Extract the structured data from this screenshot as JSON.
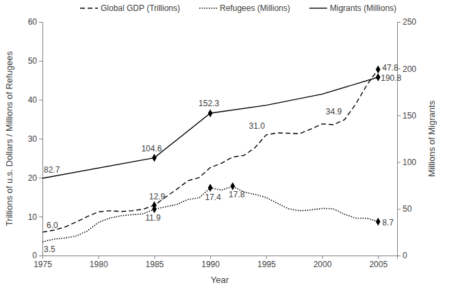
{
  "chart_data": {
    "type": "line",
    "x_label": "Year",
    "y_label": "Trillions of u.s. Dollars / Millions of Refugees",
    "y2_label": "Millions of Migrants",
    "xlim": [
      1975,
      2006.7
    ],
    "xticks": [
      1975,
      1980,
      1985,
      1990,
      1995,
      2000,
      2005
    ],
    "ylim": [
      0,
      60
    ],
    "yticks": [
      0,
      10,
      20,
      30,
      40,
      50,
      60
    ],
    "y2lim": [
      0,
      250
    ],
    "y2ticks": [
      0,
      50,
      100,
      150,
      200,
      250
    ],
    "grid": false,
    "legend": "top",
    "series": [
      {
        "name": "Global GDP (Trillions)",
        "color": "#000000",
        "line_style": "dashed",
        "axis": "y",
        "x": [
          1975,
          1976,
          1977,
          1978,
          1979,
          1980,
          1981,
          1982,
          1983,
          1984,
          1985,
          1986,
          1987,
          1988,
          1989,
          1990,
          1991,
          1992,
          1993,
          1994,
          1995,
          1996,
          1997,
          1998,
          1999,
          2000,
          2001,
          2002,
          2003,
          2004,
          2005
        ],
        "values": [
          6.0,
          6.5,
          7.3,
          8.6,
          10.0,
          11.2,
          11.5,
          11.3,
          11.5,
          11.9,
          12.9,
          15.0,
          17.0,
          19.2,
          20.0,
          22.6,
          23.7,
          25.3,
          25.7,
          27.7,
          31.0,
          31.5,
          31.4,
          31.3,
          32.5,
          33.8,
          33.6,
          34.9,
          38.9,
          43.8,
          47.8
        ]
      },
      {
        "name": "Refugees (Millions)",
        "color": "#000000",
        "line_style": "dotted",
        "axis": "y",
        "x": [
          1975,
          1976,
          1977,
          1978,
          1979,
          1980,
          1981,
          1982,
          1983,
          1984,
          1985,
          1986,
          1987,
          1988,
          1989,
          1990,
          1991,
          1992,
          1993,
          1994,
          1995,
          1996,
          1997,
          1998,
          1999,
          2000,
          2001,
          2002,
          2003,
          2004,
          2005
        ],
        "values": [
          3.5,
          4.2,
          4.5,
          5.0,
          6.3,
          8.5,
          9.6,
          10.2,
          10.5,
          10.7,
          11.9,
          12.5,
          13.1,
          14.4,
          14.8,
          17.4,
          16.8,
          17.8,
          16.3,
          15.7,
          14.9,
          13.4,
          12.0,
          11.5,
          11.7,
          12.1,
          12.0,
          10.6,
          9.6,
          9.6,
          8.7
        ]
      },
      {
        "name": "Migrants (Millions)",
        "color": "#000000",
        "line_style": "solid",
        "axis": "y2",
        "x": [
          1975,
          1985,
          1990,
          1995,
          2000,
          2005
        ],
        "values": [
          82.7,
          104.6,
          152.3,
          160.8,
          172.7,
          190.8
        ]
      }
    ],
    "annotations": [
      {
        "text": "82.7",
        "x": 1975,
        "y": 82.7,
        "axis": "y2"
      },
      {
        "text": "104.6",
        "x": 1985,
        "y": 104.6,
        "axis": "y2",
        "marker": "diamond"
      },
      {
        "text": "152.3",
        "x": 1990,
        "y": 152.3,
        "axis": "y2",
        "marker": "diamond"
      },
      {
        "text": "190.8",
        "x": 2005,
        "y": 190.8,
        "axis": "y2",
        "marker": "diamond"
      },
      {
        "text": "6.0",
        "x": 1975,
        "y": 6.0,
        "axis": "y"
      },
      {
        "text": "12.9",
        "x": 1985,
        "y": 12.9,
        "axis": "y",
        "marker": "diamond"
      },
      {
        "text": "31.0",
        "x": 1995,
        "y": 31.0,
        "axis": "y"
      },
      {
        "text": "34.9",
        "x": 2002,
        "y": 34.9,
        "axis": "y"
      },
      {
        "text": "47.8",
        "x": 2005,
        "y": 47.8,
        "axis": "y",
        "marker": "diamond"
      },
      {
        "text": "3.5",
        "x": 1975,
        "y": 3.5,
        "axis": "y"
      },
      {
        "text": "11.9",
        "x": 1985,
        "y": 11.9,
        "axis": "y",
        "marker": "diamond"
      },
      {
        "text": "17.4",
        "x": 1990,
        "y": 17.4,
        "axis": "y",
        "marker": "diamond"
      },
      {
        "text": "17.8",
        "x": 1992,
        "y": 17.8,
        "axis": "y",
        "marker": "diamond"
      },
      {
        "text": "8.7",
        "x": 2005,
        "y": 8.7,
        "axis": "y",
        "marker": "diamond"
      }
    ]
  }
}
